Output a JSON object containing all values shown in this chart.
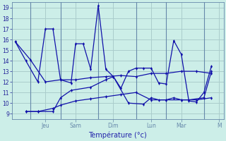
{
  "background_color": "#cceee8",
  "grid_color": "#aacccc",
  "line_color": "#1111aa",
  "xlabel": "Température (°c)",
  "ylim": [
    8.5,
    19.5
  ],
  "yticks": [
    9,
    10,
    11,
    12,
    13,
    14,
    15,
    16,
    17,
    18,
    19
  ],
  "xlim": [
    -0.2,
    13.8
  ],
  "day_labels": [
    "Jeu",
    "Sam",
    "Dim",
    "Lun",
    "Mar",
    "M"
  ],
  "day_x": [
    2.0,
    4.0,
    6.5,
    9.0,
    11.0,
    13.5
  ],
  "vline_x": [
    1.0,
    3.0,
    5.5,
    8.0,
    10.0,
    12.5
  ],
  "series1_x": [
    0,
    1,
    2,
    3,
    4,
    5,
    6,
    7,
    8,
    9,
    10,
    11,
    12,
    13
  ],
  "series1_y": [
    15.8,
    14.1,
    12.0,
    12.2,
    12.2,
    12.4,
    12.5,
    12.6,
    12.5,
    12.8,
    12.8,
    13.0,
    13.0,
    12.8
  ],
  "series2_x": [
    0,
    0.7,
    1.5,
    2.0,
    2.5,
    3.0,
    3.7,
    4.0,
    4.5,
    5.0,
    5.5,
    6.0,
    6.5,
    7.0,
    7.5,
    8.0,
    8.5,
    9.0,
    9.5,
    10.0,
    10.5,
    11.0,
    11.5,
    12.0,
    12.5,
    13.0
  ],
  "series2_y": [
    15.8,
    14.0,
    12.0,
    17.0,
    17.0,
    12.2,
    11.9,
    15.6,
    15.6,
    13.2,
    19.2,
    13.2,
    12.5,
    11.4,
    13.0,
    13.3,
    13.3,
    13.3,
    11.9,
    11.8,
    15.9,
    14.6,
    10.2,
    10.1,
    11.0,
    13.5
  ],
  "series3_x": [
    0.7,
    1.5,
    2.5,
    3.0,
    3.7,
    5.0,
    6.0,
    6.5,
    7.5,
    8.5,
    9.0,
    9.5,
    10.0,
    10.5,
    11.0,
    11.5,
    12.5,
    13.0
  ],
  "series3_y": [
    9.2,
    9.2,
    9.2,
    10.5,
    11.2,
    11.5,
    12.2,
    12.5,
    10.0,
    9.9,
    10.5,
    10.3,
    10.3,
    10.5,
    10.3,
    10.3,
    10.5,
    13.0
  ],
  "series4_x": [
    0.7,
    1.5,
    2.5,
    3.0,
    4.0,
    5.0,
    6.0,
    7.0,
    8.0,
    9.0,
    10.0,
    11.0,
    12.0,
    13.0
  ],
  "series4_y": [
    9.2,
    9.2,
    9.5,
    9.8,
    10.2,
    10.4,
    10.6,
    10.8,
    11.0,
    10.3,
    10.3,
    10.3,
    10.3,
    10.5
  ]
}
